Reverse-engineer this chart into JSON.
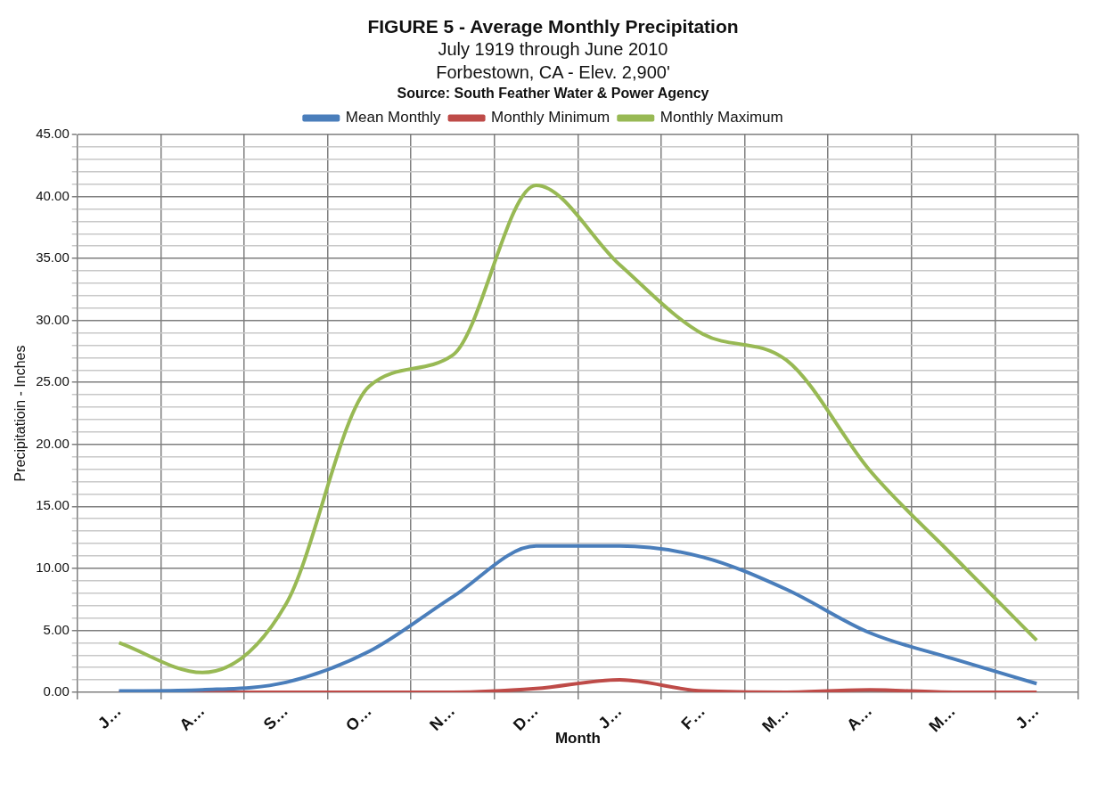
{
  "chart_data": {
    "type": "line",
    "title": "FIGURE 5 - Average Monthly Precipitation",
    "subtitle": "July 1919 through June 2010\nForbestown, CA - Elev. 2,900'",
    "annotations": [
      "Source:  South Feather Water & Power Agency"
    ],
    "xlabel": "Month",
    "ylabel": "Precipitatioin - Inches",
    "categories": [
      "J…",
      "A…",
      "S…",
      "O…",
      "N…",
      "D…",
      "J…",
      "F…",
      "M…",
      "A…",
      "M…",
      "J…"
    ],
    "series": [
      {
        "name": "Mean Monthly",
        "color": "#4a7ebb",
        "values": [
          0.1,
          0.2,
          0.8,
          3.3,
          7.7,
          11.8,
          11.8,
          10.9,
          8.3,
          4.8,
          2.7,
          0.7
        ]
      },
      {
        "name": "Monthly Minimum",
        "color": "#be4b48",
        "values": [
          0.0,
          0.0,
          0.0,
          0.0,
          0.0,
          0.3,
          1.0,
          0.1,
          0.0,
          0.2,
          0.0,
          0.0
        ]
      },
      {
        "name": "Monthly Maximum",
        "color": "#98b954",
        "values": [
          4.0,
          1.6,
          7.1,
          24.7,
          27.2,
          40.9,
          34.5,
          28.9,
          26.8,
          17.9,
          11.0,
          4.2
        ]
      }
    ],
    "ylim": [
      0,
      45
    ],
    "yticks": [
      {
        "value": 0,
        "label": "0.00"
      },
      {
        "value": 1,
        "label": null
      },
      {
        "value": 2,
        "label": null
      },
      {
        "value": 3,
        "label": null
      },
      {
        "value": 4,
        "label": null
      },
      {
        "value": 5,
        "label": "5.00"
      },
      {
        "value": 6,
        "label": null
      },
      {
        "value": 7,
        "label": null
      },
      {
        "value": 8,
        "label": null
      },
      {
        "value": 9,
        "label": null
      },
      {
        "value": 10,
        "label": "10.00"
      },
      {
        "value": 11,
        "label": null
      },
      {
        "value": 12,
        "label": null
      },
      {
        "value": 13,
        "label": null
      },
      {
        "value": 14,
        "label": null
      },
      {
        "value": 15,
        "label": "15.00"
      },
      {
        "value": 16,
        "label": null
      },
      {
        "value": 17,
        "label": null
      },
      {
        "value": 18,
        "label": null
      },
      {
        "value": 19,
        "label": null
      },
      {
        "value": 20,
        "label": "20.00"
      },
      {
        "value": 21,
        "label": null
      },
      {
        "value": 22,
        "label": null
      },
      {
        "value": 23,
        "label": null
      },
      {
        "value": 24,
        "label": null
      },
      {
        "value": 25,
        "label": "25.00"
      },
      {
        "value": 26,
        "label": null
      },
      {
        "value": 27,
        "label": null
      },
      {
        "value": 28,
        "label": null
      },
      {
        "value": 29,
        "label": null
      },
      {
        "value": 30,
        "label": "30.00"
      },
      {
        "value": 31,
        "label": null
      },
      {
        "value": 32,
        "label": null
      },
      {
        "value": 33,
        "label": null
      },
      {
        "value": 34,
        "label": null
      },
      {
        "value": 35,
        "label": "35.00"
      },
      {
        "value": 36,
        "label": null
      },
      {
        "value": 37,
        "label": null
      },
      {
        "value": 38,
        "label": null
      },
      {
        "value": 39,
        "label": null
      },
      {
        "value": 40,
        "label": "40.00"
      },
      {
        "value": 41,
        "label": null
      },
      {
        "value": 42,
        "label": null
      },
      {
        "value": 43,
        "label": null
      },
      {
        "value": 44,
        "label": null
      },
      {
        "value": 45,
        "label": "45.00"
      }
    ],
    "grid": true,
    "legend": "top",
    "marker": "none",
    "line_style": "solid"
  }
}
